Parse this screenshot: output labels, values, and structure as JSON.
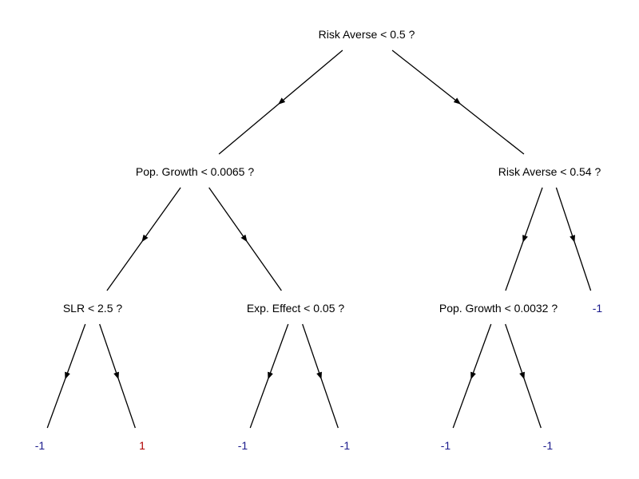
{
  "colors": {
    "internal": "#000000",
    "leaf_neg": "#1a1a8c",
    "leaf_pos": "#b00000",
    "edge": "#000000"
  },
  "tree": {
    "root": "Risk Averse < 0.5 ?",
    "n_left": "Pop. Growth < 0.0065 ?",
    "n_right": "Risk Averse < 0.54 ?",
    "n_ll": "SLR < 2.5 ?",
    "n_lr": "Exp. Effect < 0.05 ?",
    "n_rl": "Pop. Growth < 0.0032 ?",
    "leaf_rr": "-1",
    "leaf_lll": "-1",
    "leaf_llr": "1",
    "leaf_lrl": "-1",
    "leaf_lrr": "-1",
    "leaf_rll": "-1",
    "leaf_rlr": "-1"
  },
  "nodes": [
    {
      "id": "root",
      "kind": "internal"
    },
    {
      "id": "n_left",
      "kind": "internal"
    },
    {
      "id": "n_right",
      "kind": "internal"
    },
    {
      "id": "n_ll",
      "kind": "internal"
    },
    {
      "id": "n_lr",
      "kind": "internal"
    },
    {
      "id": "n_rl",
      "kind": "internal"
    },
    {
      "id": "leaf_rr",
      "kind": "leaf",
      "class": "-1"
    },
    {
      "id": "leaf_lll",
      "kind": "leaf",
      "class": "-1"
    },
    {
      "id": "leaf_llr",
      "kind": "leaf",
      "class": "1"
    },
    {
      "id": "leaf_lrl",
      "kind": "leaf",
      "class": "-1"
    },
    {
      "id": "leaf_lrr",
      "kind": "leaf",
      "class": "-1"
    },
    {
      "id": "leaf_rll",
      "kind": "leaf",
      "class": "-1"
    },
    {
      "id": "leaf_rlr",
      "kind": "leaf",
      "class": "-1"
    }
  ],
  "edges": [
    {
      "from": "root",
      "to": "n_left"
    },
    {
      "from": "root",
      "to": "n_right"
    },
    {
      "from": "n_left",
      "to": "n_ll"
    },
    {
      "from": "n_left",
      "to": "n_lr"
    },
    {
      "from": "n_right",
      "to": "n_rl"
    },
    {
      "from": "n_right",
      "to": "leaf_rr"
    },
    {
      "from": "n_ll",
      "to": "leaf_lll"
    },
    {
      "from": "n_ll",
      "to": "leaf_llr"
    },
    {
      "from": "n_lr",
      "to": "leaf_lrl"
    },
    {
      "from": "n_lr",
      "to": "leaf_lrr"
    },
    {
      "from": "n_rl",
      "to": "leaf_rll"
    },
    {
      "from": "n_rl",
      "to": "leaf_rlr"
    }
  ]
}
